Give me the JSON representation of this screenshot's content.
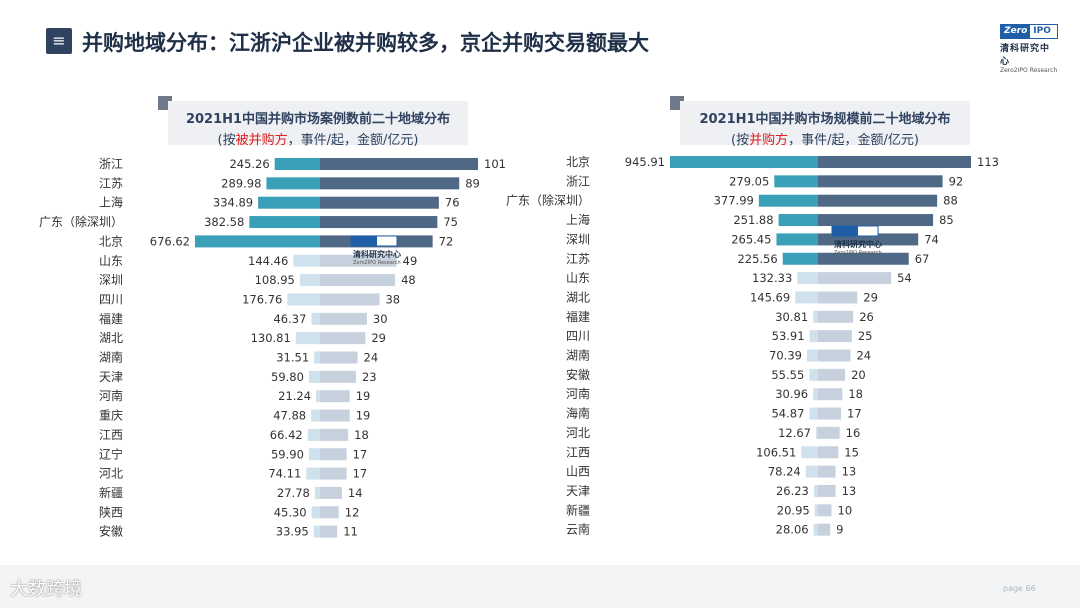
{
  "header": {
    "title": "并购地域分布：江浙沪企业被并购较多，京企并购交易额最大",
    "menu_icon": "≡"
  },
  "logo": {
    "zero": "Zero",
    "ipo": "IPO",
    "cn": "清科研究中心",
    "en": "Zero2IPO Research"
  },
  "watermark": {
    "cn": "清科研究中心",
    "en": "Zero2IPO Research"
  },
  "footer": {
    "brand": "大数跨境",
    "page": "page 66"
  },
  "chart_data": [
    {
      "type": "bar",
      "title": "2021H1中国并购市场案例数前二十地域分布",
      "subtitle_prefix": "(按",
      "subtitle_highlight": "被并购方",
      "subtitle_suffix": "，事件/起，金额/亿元)",
      "highlight_color": "#e02020",
      "colors": {
        "left_top": "#3aa0b8",
        "left_light": "#cfe1ec",
        "right_dark": "#4f6886",
        "right_light": "#c7d1dd"
      },
      "categories": [
        "浙江",
        "江苏",
        "上海",
        "广东（除深圳）",
        "北京",
        "山东",
        "深圳",
        "四川",
        "福建",
        "湖北",
        "湖南",
        "天津",
        "河南",
        "重庆",
        "江西",
        "辽宁",
        "河北",
        "新疆",
        "陕西",
        "安徽"
      ],
      "series": [
        {
          "name": "金额/亿元",
          "values": [
            245.26,
            289.98,
            334.89,
            382.58,
            676.62,
            144.46,
            108.95,
            176.76,
            46.37,
            130.81,
            31.51,
            59.8,
            21.24,
            47.88,
            66.42,
            59.9,
            74.11,
            27.78,
            45.3,
            33.95
          ],
          "labels": [
            "245.26",
            "289.98",
            "334.89",
            "382.58",
            "676.62",
            "144.46",
            "108.95",
            "176.76",
            "46.37",
            "130.81",
            "31.51",
            "59.80",
            "21.24",
            "47.88",
            "66.42",
            "59.90",
            "74.11",
            "27.78",
            "45.30",
            "33.95"
          ]
        },
        {
          "name": "事件/起",
          "values": [
            101,
            89,
            76,
            75,
            72,
            49,
            48,
            38,
            30,
            29,
            24,
            23,
            19,
            19,
            18,
            17,
            17,
            14,
            12,
            11
          ],
          "labels": [
            "101",
            "89",
            "76",
            "75",
            "72",
            "49",
            "48",
            "38",
            "30",
            "29",
            "24",
            "23",
            "19",
            "19",
            "18",
            "17",
            "17",
            "14",
            "12",
            "11"
          ]
        }
      ]
    },
    {
      "type": "bar",
      "title": "2021H1中国并购市场规模前二十地域分布",
      "subtitle_prefix": "(按",
      "subtitle_highlight": "并购方",
      "subtitle_suffix": "，事件/起，金额/亿元)",
      "highlight_color": "#e02020",
      "colors": {
        "left_top": "#3aa0b8",
        "left_light": "#cfe1ec",
        "right_dark": "#4f6886",
        "right_light": "#c7d1dd"
      },
      "categories": [
        "北京",
        "浙江",
        "广东（除深圳）",
        "上海",
        "深圳",
        "江苏",
        "山东",
        "湖北",
        "福建",
        "四川",
        "湖南",
        "安徽",
        "河南",
        "海南",
        "河北",
        "江西",
        "山西",
        "天津",
        "新疆",
        "云南"
      ],
      "series": [
        {
          "name": "金额/亿元",
          "values": [
            945.91,
            279.05,
            377.99,
            251.88,
            265.45,
            225.56,
            132.33,
            145.69,
            30.81,
            53.91,
            70.39,
            55.55,
            30.96,
            54.87,
            12.67,
            106.51,
            78.24,
            26.23,
            20.95,
            28.06
          ],
          "labels": [
            "945.91",
            "279.05",
            "377.99",
            "251.88",
            "265.45",
            "225.56",
            "132.33",
            "145.69",
            "30.81",
            "53.91",
            "70.39",
            "55.55",
            "30.96",
            "54.87",
            "12.67",
            "106.51",
            "78.24",
            "26.23",
            "20.95",
            "28.06"
          ]
        },
        {
          "name": "事件/起",
          "values": [
            113,
            92,
            88,
            85,
            74,
            67,
            54,
            29,
            26,
            25,
            24,
            20,
            18,
            17,
            16,
            15,
            13,
            13,
            10,
            9
          ],
          "labels": [
            "113",
            "92",
            "88",
            "85",
            "74",
            "67",
            "54",
            "29",
            "26",
            "25",
            "24",
            "20",
            "18",
            "17",
            "16",
            "15",
            "13",
            "13",
            "10",
            "9"
          ]
        }
      ]
    }
  ]
}
